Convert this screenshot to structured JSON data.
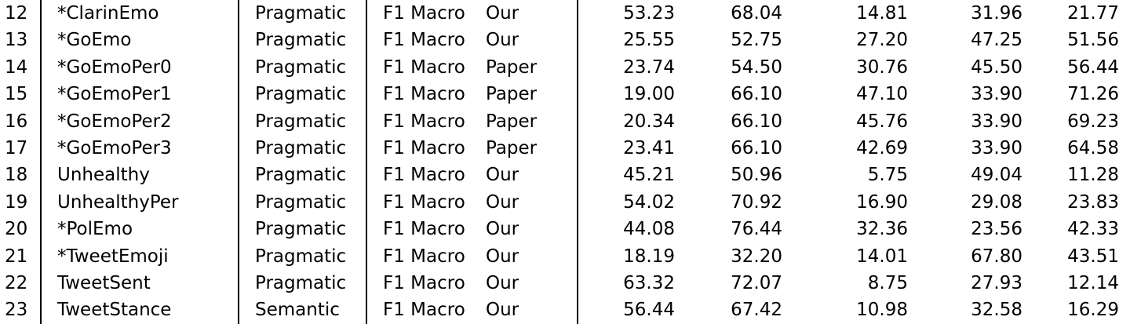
{
  "rows": [
    {
      "id": "12",
      "name": "*ClarinEmo",
      "type": "Pragmatic",
      "metric": "F1 Macro",
      "source": "Our",
      "v1": "53.23",
      "v2": "68.04",
      "v3": "14.81",
      "v4": "31.96",
      "v5": "21.77"
    },
    {
      "id": "13",
      "name": "*GoEmo",
      "type": "Pragmatic",
      "metric": "F1 Macro",
      "source": "Our",
      "v1": "25.55",
      "v2": "52.75",
      "v3": "27.20",
      "v4": "47.25",
      "v5": "51.56"
    },
    {
      "id": "14",
      "name": "*GoEmoPer0",
      "type": "Pragmatic",
      "metric": "F1 Macro",
      "source": "Paper",
      "v1": "23.74",
      "v2": "54.50",
      "v3": "30.76",
      "v4": "45.50",
      "v5": "56.44"
    },
    {
      "id": "15",
      "name": "*GoEmoPer1",
      "type": "Pragmatic",
      "metric": "F1 Macro",
      "source": "Paper",
      "v1": "19.00",
      "v2": "66.10",
      "v3": "47.10",
      "v4": "33.90",
      "v5": "71.26"
    },
    {
      "id": "16",
      "name": "*GoEmoPer2",
      "type": "Pragmatic",
      "metric": "F1 Macro",
      "source": "Paper",
      "v1": "20.34",
      "v2": "66.10",
      "v3": "45.76",
      "v4": "33.90",
      "v5": "69.23"
    },
    {
      "id": "17",
      "name": "*GoEmoPer3",
      "type": "Pragmatic",
      "metric": "F1 Macro",
      "source": "Paper",
      "v1": "23.41",
      "v2": "66.10",
      "v3": "42.69",
      "v4": "33.90",
      "v5": "64.58"
    },
    {
      "id": "18",
      "name": "Unhealthy",
      "type": "Pragmatic",
      "metric": "F1 Macro",
      "source": "Our",
      "v1": "45.21",
      "v2": "50.96",
      "v3": "5.75",
      "v4": "49.04",
      "v5": "11.28"
    },
    {
      "id": "19",
      "name": "UnhealthyPer",
      "type": "Pragmatic",
      "metric": "F1 Macro",
      "source": "Our",
      "v1": "54.02",
      "v2": "70.92",
      "v3": "16.90",
      "v4": "29.08",
      "v5": "23.83"
    },
    {
      "id": "20",
      "name": "*PolEmo",
      "type": "Pragmatic",
      "metric": "F1 Macro",
      "source": "Our",
      "v1": "44.08",
      "v2": "76.44",
      "v3": "32.36",
      "v4": "23.56",
      "v5": "42.33"
    },
    {
      "id": "21",
      "name": "*TweetEmoji",
      "type": "Pragmatic",
      "metric": "F1 Macro",
      "source": "Our",
      "v1": "18.19",
      "v2": "32.20",
      "v3": "14.01",
      "v4": "67.80",
      "v5": "43.51"
    },
    {
      "id": "22",
      "name": "TweetSent",
      "type": "Pragmatic",
      "metric": "F1 Macro",
      "source": "Our",
      "v1": "63.32",
      "v2": "72.07",
      "v3": "8.75",
      "v4": "27.93",
      "v5": "12.14"
    },
    {
      "id": "23",
      "name": "TweetStance",
      "type": "Semantic",
      "metric": "F1 Macro",
      "source": "Our",
      "v1": "56.44",
      "v2": "67.42",
      "v3": "10.98",
      "v4": "32.58",
      "v5": "16.29"
    }
  ]
}
